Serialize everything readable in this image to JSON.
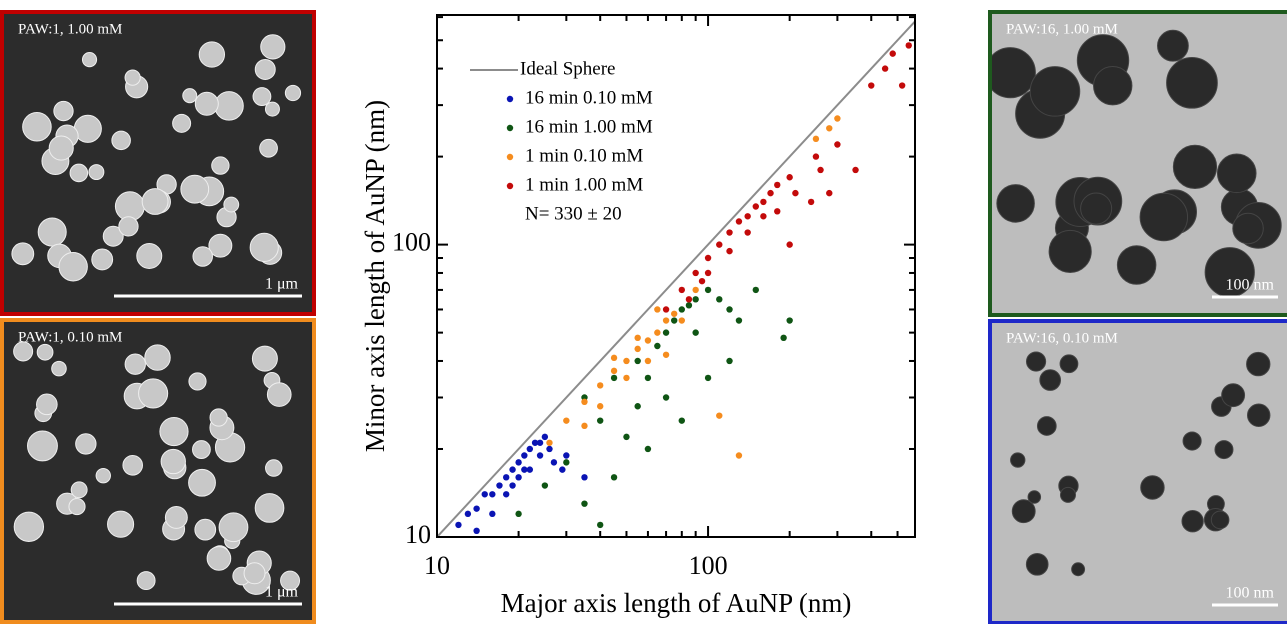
{
  "panels": [
    {
      "label": "PAW:1, 1.00 mM",
      "scale_bar": "1 μm",
      "border_color": "#c00000"
    },
    {
      "label": "PAW:1, 0.10 mM",
      "scale_bar": "1 μm",
      "border_color": "#f08c1e"
    },
    {
      "label": "PAW:16, 1.00 mM",
      "scale_bar": "100 nm",
      "border_color": "#1e5a1e"
    },
    {
      "label": "PAW:16, 0.10 mM",
      "scale_bar": "100 nm",
      "border_color": "#1e28c8"
    }
  ],
  "chart_data": {
    "type": "scatter",
    "x_label": "Major axis length of AuNP (nm)",
    "y_label": "Minor axis length of AuNP (nm)",
    "log_x": true,
    "log_y": true,
    "xlim": [
      10,
      580
    ],
    "ylim": [
      10,
      610
    ],
    "xticks": [
      10,
      100
    ],
    "yticks": [
      10,
      100
    ],
    "xminor": [
      20,
      30,
      40,
      50,
      60,
      70,
      80,
      90,
      200,
      300,
      400,
      500
    ],
    "yminor": [
      20,
      30,
      40,
      50,
      60,
      70,
      80,
      90,
      200,
      300,
      400,
      500,
      600
    ],
    "annotation": "N= 330 ± 20",
    "reference_line": {
      "name": "Ideal Sphere",
      "color": "#8c8c8c",
      "x": [
        10,
        580
      ],
      "y": [
        10,
        580
      ]
    },
    "series": [
      {
        "name": "16 min 0.10 mM",
        "color": "#0a14b4",
        "x": [
          12,
          13,
          14,
          15,
          16,
          17,
          18,
          19,
          20,
          21,
          22,
          23,
          24,
          25,
          18,
          20,
          22,
          26,
          30,
          35,
          14,
          16,
          19,
          21,
          24,
          27,
          29
        ],
        "y": [
          11,
          12,
          12.5,
          14,
          14,
          15,
          16,
          17,
          18,
          19,
          20,
          21,
          21,
          22,
          14,
          16,
          17,
          20,
          19,
          16,
          10.5,
          12,
          15,
          17,
          19,
          18,
          17
        ]
      },
      {
        "name": "16 min 1.00 mM",
        "color": "#0f5514",
        "x": [
          20,
          25,
          30,
          35,
          40,
          45,
          50,
          55,
          60,
          65,
          70,
          75,
          80,
          85,
          90,
          100,
          110,
          120,
          130,
          150,
          200,
          190,
          60,
          80,
          100,
          70,
          55,
          45,
          90,
          120,
          40,
          35
        ],
        "y": [
          12,
          15,
          18,
          13,
          11,
          16,
          22,
          28,
          35,
          45,
          50,
          55,
          60,
          62,
          65,
          70,
          65,
          60,
          55,
          70,
          55,
          48,
          20,
          25,
          35,
          30,
          40,
          35,
          50,
          40,
          25,
          30
        ]
      },
      {
        "name": "1 min 0.10 mM",
        "color": "#f58c1e",
        "x": [
          26,
          30,
          35,
          40,
          45,
          50,
          55,
          60,
          65,
          70,
          75,
          80,
          50,
          60,
          70,
          40,
          35,
          65,
          90,
          130,
          110,
          300,
          280,
          250,
          45,
          55
        ],
        "y": [
          21,
          25,
          29,
          33,
          37,
          40,
          44,
          47,
          50,
          55,
          58,
          55,
          35,
          40,
          42,
          28,
          24,
          60,
          70,
          19,
          26,
          270,
          250,
          230,
          41,
          48
        ]
      },
      {
        "name": "1 min 1.00 mM",
        "color": "#c30a0a",
        "x": [
          70,
          80,
          90,
          100,
          110,
          120,
          130,
          140,
          150,
          160,
          170,
          180,
          200,
          100,
          120,
          140,
          160,
          180,
          210,
          250,
          300,
          350,
          400,
          450,
          480,
          520,
          550,
          85,
          95,
          200,
          240,
          280,
          260
        ],
        "y": [
          60,
          70,
          80,
          90,
          100,
          110,
          120,
          125,
          135,
          140,
          150,
          160,
          170,
          80,
          95,
          110,
          125,
          130,
          150,
          200,
          220,
          180,
          350,
          400,
          450,
          350,
          480,
          65,
          75,
          100,
          140,
          150,
          180
        ]
      }
    ]
  }
}
